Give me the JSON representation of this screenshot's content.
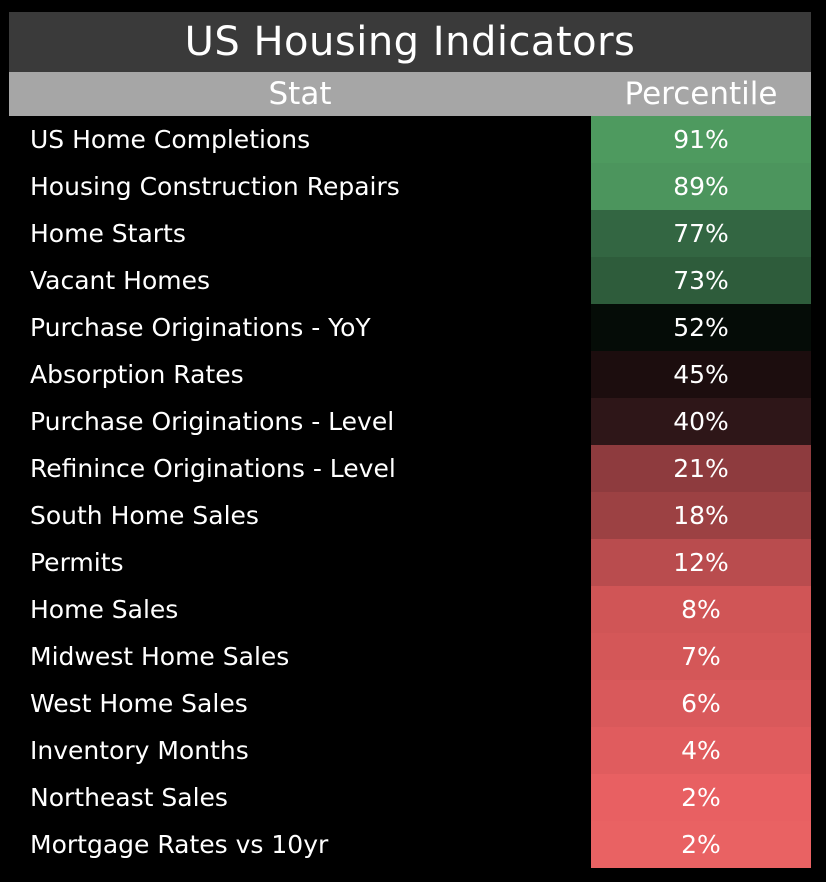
{
  "title": "US Housing Indicators",
  "columns": {
    "stat": "Stat",
    "percentile": "Percentile"
  },
  "chart_data": {
    "type": "table",
    "title": "US Housing Indicators",
    "columns": [
      "Stat",
      "Percentile"
    ],
    "rows": [
      {
        "stat": "US Home Completions",
        "percentile": "91%",
        "value": 91,
        "color": "#4e9a5f"
      },
      {
        "stat": "Housing Construction Repairs",
        "percentile": "89%",
        "value": 89,
        "color": "#4c955d"
      },
      {
        "stat": "Home Starts",
        "percentile": "77%",
        "value": 77,
        "color": "#336642"
      },
      {
        "stat": "Vacant Homes",
        "percentile": "73%",
        "value": 73,
        "color": "#2e5c3b"
      },
      {
        "stat": "Purchase Originations - YoY",
        "percentile": "52%",
        "value": 52,
        "color": "#050c07"
      },
      {
        "stat": "Absorption Rates",
        "percentile": "45%",
        "value": 45,
        "color": "#1c0d0e"
      },
      {
        "stat": "Purchase Originations - Level",
        "percentile": "40%",
        "value": 40,
        "color": "#2e1618"
      },
      {
        "stat": "Refinince Originations - Level",
        "percentile": "21%",
        "value": 21,
        "color": "#8e3b3e"
      },
      {
        "stat": "South Home Sales",
        "percentile": "18%",
        "value": 18,
        "color": "#9c4143"
      },
      {
        "stat": "Permits",
        "percentile": "12%",
        "value": 12,
        "color": "#b94c4e"
      },
      {
        "stat": "Home Sales",
        "percentile": "8%",
        "value": 8,
        "color": "#d05556"
      },
      {
        "stat": "Midwest Home Sales",
        "percentile": "7%",
        "value": 7,
        "color": "#d45758"
      },
      {
        "stat": "West Home Sales",
        "percentile": "6%",
        "value": 6,
        "color": "#d9595b"
      },
      {
        "stat": "Inventory Months",
        "percentile": "4%",
        "value": 4,
        "color": "#e05c5e"
      },
      {
        "stat": "Northeast Sales",
        "percentile": "2%",
        "value": 2,
        "color": "#e86062"
      },
      {
        "stat": "Mortgage Rates vs 10yr",
        "percentile": "2%",
        "value": 2,
        "color": "#e96263"
      }
    ]
  }
}
